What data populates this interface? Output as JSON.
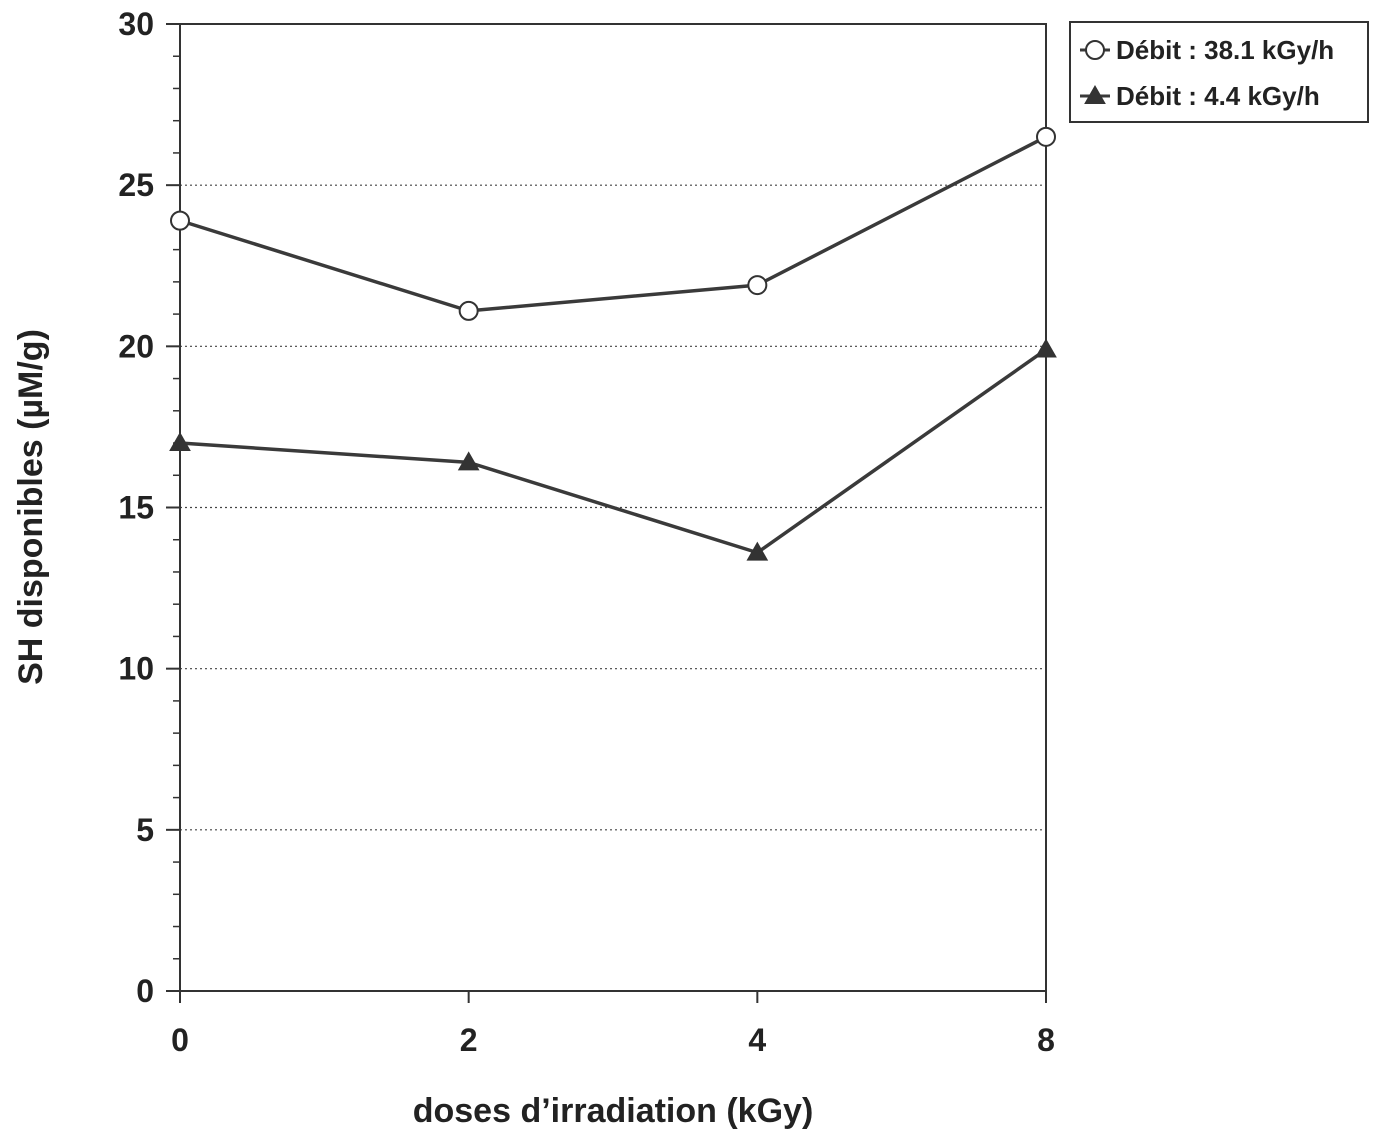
{
  "chart_data": {
    "type": "line",
    "title": "",
    "xlabel": "doses d’irradiation (kGy)",
    "ylabel": "SH disponibles (µM/g)",
    "categories": [
      "0",
      "2",
      "4",
      "8"
    ],
    "ylim": [
      0,
      30
    ],
    "yticks": [
      0,
      5,
      10,
      15,
      20,
      25,
      30
    ],
    "grid": "horizontal-dotted",
    "legend_position": "top-right-outside",
    "series": [
      {
        "name": "Débit : 38.1 kGy/h",
        "marker": "circle-open",
        "values": [
          23.9,
          21.1,
          21.9,
          26.5
        ]
      },
      {
        "name": "Débit : 4.4 kGy/h",
        "marker": "triangle-filled",
        "values": [
          17.0,
          16.4,
          13.6,
          19.9
        ]
      }
    ]
  }
}
